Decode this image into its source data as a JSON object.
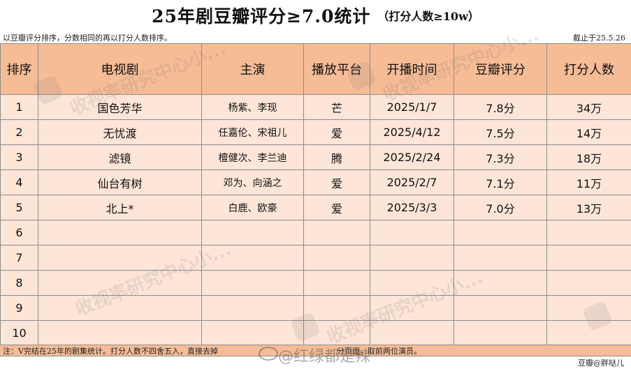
{
  "title": {
    "main": "25年剧豆瓣评分≥7.0统计",
    "sub": "（打分人数≥10w）"
  },
  "note": {
    "left": "以豆瓣评分排序，分数相同的再以打分人数排序。",
    "right": "截止于25.5.26"
  },
  "table": {
    "headers": [
      "排序",
      "电视剧",
      "主演",
      "播放平台",
      "开播时间",
      "豆瓣评分",
      "打分人数"
    ],
    "rows": [
      {
        "rank": "1",
        "drama": "国色芳华",
        "cast": "杨紫、李现",
        "platform": "芒",
        "date": "2025/1/7",
        "score": "7.8分",
        "votes": "34万"
      },
      {
        "rank": "2",
        "drama": "无忧渡",
        "cast": "任嘉伦、宋祖儿",
        "platform": "爱",
        "date": "2025/4/12",
        "score": "7.5分",
        "votes": "14万"
      },
      {
        "rank": "3",
        "drama": "滤镜",
        "cast": "檀健次、李兰迪",
        "platform": "腾",
        "date": "2025/2/24",
        "score": "7.3分",
        "votes": "18万"
      },
      {
        "rank": "4",
        "drama": "仙台有树",
        "cast": "邓为、向涵之",
        "platform": "爱",
        "date": "2025/2/7",
        "score": "7.1分",
        "votes": "11万"
      },
      {
        "rank": "5",
        "drama": "北上*",
        "cast": "白鹿、欧豪",
        "platform": "爱",
        "date": "2025/3/3",
        "score": "7.0分",
        "votes": "13万"
      },
      {
        "rank": "6",
        "drama": "",
        "cast": "",
        "platform": "",
        "date": "",
        "score": "",
        "votes": ""
      },
      {
        "rank": "7",
        "drama": "",
        "cast": "",
        "platform": "",
        "date": "",
        "score": "",
        "votes": ""
      },
      {
        "rank": "8",
        "drama": "",
        "cast": "",
        "platform": "",
        "date": "",
        "score": "",
        "votes": ""
      },
      {
        "rank": "9",
        "drama": "",
        "cast": "",
        "platform": "",
        "date": "",
        "score": "",
        "votes": ""
      },
      {
        "rank": "10",
        "drama": "",
        "cast": "",
        "platform": "",
        "date": "",
        "score": "",
        "votes": ""
      }
    ]
  },
  "footer": {
    "note": "注：V完结在25年的剧集统计。打分人数不四舍五入，直接去掉",
    "note_tail": "分页面，取前两位演员。",
    "credit": "豆瓣@胖哒儿",
    "weibo_watermark": "@红绿都是辣"
  },
  "watermark_text": "收视率研究中心小...",
  "colors": {
    "header_bg": "#f6bc96",
    "row_bg": "#fde5d7",
    "border": "#8c8c8c"
  }
}
